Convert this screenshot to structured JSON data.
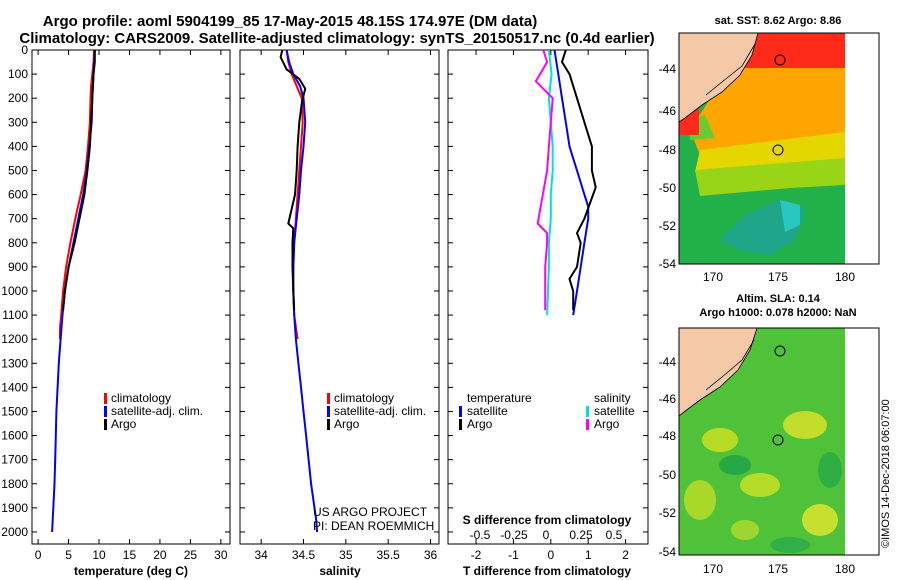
{
  "header": {
    "line1": "Argo profile: aoml 5904199_85 17-May-2015 48.15S 174.97E (DM data)",
    "line2": "Climatology: CARS2009. Satellite-adjusted climatology: synTS_20150517.nc (0.4d earlier)"
  },
  "credit": {
    "project": "US ARGO PROJECT",
    "pi": "PI: DEAN ROEMMICH",
    "stamp": "©IMOS 14-Dec-2018 06:07:00"
  },
  "colors": {
    "climatology": "#ff0000",
    "satellite": "#0000ff",
    "argo": "#000000",
    "satellite_s": "#00e0e0",
    "argo_s": "#ff00ff"
  },
  "chart_data": [
    {
      "type": "line",
      "xlabel": "temperature (deg C)",
      "ylabel": "",
      "xlim": [
        -1,
        31.5
      ],
      "ylim": [
        2050,
        0
      ],
      "xticks": [
        0,
        5,
        10,
        15,
        20,
        25,
        30
      ],
      "yticks": [
        0,
        100,
        200,
        300,
        400,
        500,
        600,
        700,
        800,
        900,
        1000,
        1100,
        1200,
        1300,
        1400,
        1500,
        1600,
        1700,
        1800,
        1900,
        2000
      ],
      "legend": [
        "climatology",
        "satellite-adj. clim.",
        "Argo"
      ],
      "legend_position": "lower-middle",
      "series": [
        {
          "name": "climatology",
          "color": "#ff0000",
          "x": [
            9.2,
            9.1,
            8.9,
            8.7,
            8.6,
            8.5,
            8.2,
            7.8,
            7.0,
            6.1,
            5.3,
            4.6,
            4.1,
            3.8,
            3.6,
            3.6
          ],
          "y": [
            0,
            50,
            100,
            150,
            200,
            300,
            400,
            500,
            600,
            700,
            800,
            900,
            1000,
            1100,
            1150,
            1200
          ]
        },
        {
          "name": "satellite-adj. clim.",
          "color": "#0000ff",
          "x": [
            9.3,
            9.2,
            9.1,
            9.0,
            8.9,
            8.8,
            8.4,
            8.0,
            7.4,
            6.6,
            5.8,
            5.0,
            4.4,
            4.0,
            3.7,
            3.4,
            3.2,
            3.0,
            2.9,
            2.8,
            2.7,
            2.6,
            2.5,
            2.4,
            2.3
          ],
          "y": [
            0,
            50,
            100,
            150,
            200,
            300,
            400,
            500,
            600,
            700,
            800,
            900,
            1000,
            1100,
            1200,
            1300,
            1400,
            1500,
            1600,
            1700,
            1800,
            1850,
            1900,
            1950,
            2000
          ]
        },
        {
          "name": "Argo",
          "color": "#000000",
          "x": [
            9.3,
            9.3,
            9.1,
            9.0,
            8.9,
            8.7,
            8.5,
            8.1,
            7.6,
            6.8,
            6.0,
            5.0,
            4.4,
            4.1
          ],
          "y": [
            0,
            50,
            100,
            150,
            200,
            300,
            400,
            500,
            600,
            700,
            800,
            900,
            1000,
            1080
          ]
        }
      ]
    },
    {
      "type": "line",
      "xlabel": "salinity",
      "ylabel": "",
      "xlim": [
        33.75,
        36.1
      ],
      "ylim": [
        2050,
        0
      ],
      "xticks": [
        34,
        34.5,
        35,
        35.5,
        36
      ],
      "legend": [
        "climatology",
        "satellite-adj. clim.",
        "Argo"
      ],
      "legend_position": "lower-middle",
      "series": [
        {
          "name": "climatology",
          "color": "#ff0000",
          "x": [
            34.3,
            34.32,
            34.36,
            34.42,
            34.48,
            34.49,
            34.47,
            34.45,
            34.43,
            34.41,
            34.39,
            34.38,
            34.38,
            34.39,
            34.41,
            34.43
          ],
          "y": [
            0,
            50,
            100,
            150,
            200,
            300,
            400,
            500,
            600,
            700,
            800,
            900,
            1000,
            1100,
            1150,
            1200
          ]
        },
        {
          "name": "satellite-adj. clim.",
          "color": "#0000ff",
          "x": [
            34.3,
            34.33,
            34.38,
            34.46,
            34.5,
            34.52,
            34.5,
            34.47,
            34.45,
            34.42,
            34.39,
            34.38,
            34.38,
            34.39,
            34.41,
            34.44,
            34.47,
            34.5,
            34.53,
            34.56,
            34.59,
            34.61,
            34.63,
            34.65,
            34.66
          ],
          "y": [
            0,
            50,
            100,
            150,
            200,
            300,
            400,
            500,
            600,
            700,
            800,
            900,
            1000,
            1100,
            1200,
            1300,
            1400,
            1500,
            1600,
            1700,
            1800,
            1850,
            1900,
            1950,
            2000
          ]
        },
        {
          "name": "Argo",
          "color": "#000000",
          "x": [
            34.25,
            34.23,
            34.3,
            34.45,
            34.52,
            34.48,
            34.45,
            34.43,
            34.42,
            34.4,
            34.32,
            34.38,
            34.37,
            34.37,
            34.38,
            34.39
          ],
          "y": [
            0,
            30,
            80,
            120,
            160,
            220,
            300,
            400,
            500,
            600,
            720,
            740,
            800,
            900,
            1000,
            1080
          ]
        }
      ]
    },
    {
      "type": "line",
      "xlabel": "T difference from climatology",
      "ylabel": "",
      "xlim": [
        -2.75,
        2.6
      ],
      "ylim": [
        2050,
        0
      ],
      "xticks": [
        -2,
        -1,
        0,
        1,
        2
      ],
      "secondary_axis": {
        "label": "S difference from climatology",
        "ticks": [
          "-0.5",
          "-0.25",
          "0",
          "0.25",
          "0.5"
        ]
      },
      "legend": [
        "temperature",
        "satellite",
        "Argo",
        "salinity",
        "satellite",
        "Argo"
      ],
      "legend_position": "lower",
      "series": [
        {
          "name": "temperature satellite",
          "color": "#0000ff",
          "x": [
            0.1,
            0.2,
            0.3,
            0.4,
            0.5,
            0.6,
            0.7,
            0.8,
            0.9,
            1.0,
            1.0,
            0.9,
            0.8,
            0.7,
            0.6
          ],
          "y": [
            0,
            100,
            200,
            300,
            400,
            450,
            500,
            550,
            600,
            650,
            700,
            800,
            900,
            1000,
            1100
          ]
        },
        {
          "name": "temperature Argo",
          "color": "#000000",
          "x": [
            0.4,
            0.3,
            0.5,
            0.6,
            0.7,
            0.9,
            1.1,
            1.1,
            1.2,
            0.9,
            0.7,
            0.8,
            0.7,
            0.5,
            0.6,
            0.6
          ],
          "y": [
            0,
            50,
            100,
            150,
            200,
            300,
            400,
            500,
            570,
            700,
            760,
            800,
            900,
            950,
            1000,
            1080
          ]
        },
        {
          "name": "salinity satellite",
          "color": "#00e0e0",
          "x": [
            -0.05,
            0.02,
            -0.05,
            0.0,
            0.05,
            0.05,
            0.0,
            0.0,
            -0.05,
            -0.05,
            -0.1
          ],
          "y": [
            0,
            100,
            200,
            300,
            400,
            500,
            600,
            700,
            800,
            900,
            1100
          ]
        },
        {
          "name": "salinity Argo",
          "color": "#ff00ff",
          "x": [
            -0.2,
            -0.1,
            -0.4,
            0.05,
            0.0,
            -0.05,
            -0.1,
            -0.35,
            -0.1,
            -0.1,
            -0.15,
            -0.15
          ],
          "y": [
            0,
            50,
            130,
            200,
            300,
            400,
            500,
            720,
            760,
            800,
            900,
            1080
          ]
        }
      ]
    }
  ],
  "maps": {
    "sst": {
      "title": "sat. SST: 8.62 Argo: 8.86",
      "xticks": [
        "170",
        "175",
        "180"
      ],
      "yticks": [
        "-44",
        "-46",
        "-48",
        "-50",
        "-52",
        "-54"
      ]
    },
    "sla": {
      "title1": "Altim. SLA: 0.14",
      "title2": "Argo h1000: 0.078 h2000: NaN",
      "xticks": [
        "170",
        "175",
        "180"
      ],
      "yticks": [
        "-44",
        "-46",
        "-48",
        "-50",
        "-52",
        "-54"
      ]
    }
  }
}
